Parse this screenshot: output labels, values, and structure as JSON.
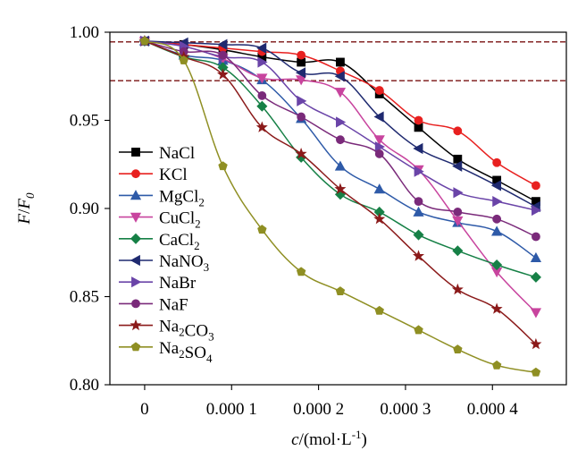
{
  "chart_data": {
    "type": "line",
    "xlabel": {
      "main": "c",
      "unit": "/(mol·L",
      "exp": "-1",
      "close": ")"
    },
    "ylabel": {
      "base": "F",
      "sep": "/",
      "base2": "F",
      "sub": "0"
    },
    "xlim": [
      -4e-05,
      0.000485
    ],
    "ylim": [
      0.8,
      1.0
    ],
    "xticks": [
      {
        "v": 0,
        "label": "0"
      },
      {
        "v": 0.0001,
        "label": "0.000 1"
      },
      {
        "v": 0.0002,
        "label": "0.000 2"
      },
      {
        "v": 0.0003,
        "label": "0.000 3"
      },
      {
        "v": 0.0004,
        "label": "0.000 4"
      }
    ],
    "yticks": [
      {
        "v": 0.8,
        "label": "0.80"
      },
      {
        "v": 0.85,
        "label": "0.85"
      },
      {
        "v": 0.9,
        "label": "0.90"
      },
      {
        "v": 0.95,
        "label": "0.95"
      },
      {
        "v": 1.0,
        "label": "1.00"
      }
    ],
    "reference_lines": [
      0.9945,
      0.9725
    ],
    "x": [
      0,
      4.5e-05,
      9e-05,
      0.000135,
      0.00018,
      0.000225,
      0.00027,
      0.000315,
      0.00036,
      0.000405,
      0.00045
    ],
    "series": [
      {
        "name": "NaCl",
        "parts": [
          [
            "NaCl",
            ""
          ]
        ],
        "color": "#000000",
        "marker": "square",
        "values": [
          0.995,
          0.993,
          0.99,
          0.986,
          0.983,
          0.983,
          0.965,
          0.946,
          0.928,
          0.916,
          0.904
        ]
      },
      {
        "name": "KCl",
        "parts": [
          [
            "KCl",
            ""
          ]
        ],
        "color": "#e8201f",
        "marker": "circle",
        "values": [
          0.995,
          0.993,
          0.991,
          0.989,
          0.987,
          0.978,
          0.967,
          0.95,
          0.944,
          0.926,
          0.913
        ]
      },
      {
        "name": "MgCl2",
        "parts": [
          [
            "MgCl",
            ""
          ],
          [
            "",
            "2"
          ]
        ],
        "color": "#2e5aa8",
        "marker": "triangle-up",
        "values": [
          0.995,
          0.987,
          0.984,
          0.973,
          0.951,
          0.924,
          0.911,
          0.898,
          0.892,
          0.887,
          0.872
        ]
      },
      {
        "name": "CuCl2",
        "parts": [
          [
            "CuCl",
            ""
          ],
          [
            "",
            "2"
          ]
        ],
        "color": "#c8449e",
        "marker": "triangle-down",
        "values": [
          0.995,
          0.992,
          0.985,
          0.974,
          0.973,
          0.966,
          0.939,
          0.922,
          0.893,
          0.864,
          0.841
        ]
      },
      {
        "name": "CaCl2",
        "parts": [
          [
            "CaCl",
            ""
          ],
          [
            "",
            "2"
          ]
        ],
        "color": "#168046",
        "marker": "diamond",
        "values": [
          0.995,
          0.986,
          0.98,
          0.958,
          0.929,
          0.908,
          0.898,
          0.885,
          0.876,
          0.868,
          0.861
        ]
      },
      {
        "name": "NaNO3",
        "parts": [
          [
            "NaNO",
            ""
          ],
          [
            "",
            "3"
          ]
        ],
        "color": "#1f2a70",
        "marker": "triangle-left",
        "values": [
          0.995,
          0.994,
          0.993,
          0.991,
          0.977,
          0.975,
          0.952,
          0.934,
          0.924,
          0.913,
          0.901
        ]
      },
      {
        "name": "NaBr",
        "parts": [
          [
            "NaBr",
            ""
          ]
        ],
        "color": "#6a44a8",
        "marker": "triangle-right",
        "values": [
          0.995,
          0.992,
          0.986,
          0.983,
          0.961,
          0.949,
          0.935,
          0.921,
          0.909,
          0.904,
          0.899
        ]
      },
      {
        "name": "NaF",
        "parts": [
          [
            "NaF",
            ""
          ]
        ],
        "color": "#7a2a7a",
        "marker": "circle",
        "values": [
          0.995,
          0.989,
          0.987,
          0.964,
          0.952,
          0.939,
          0.931,
          0.904,
          0.898,
          0.894,
          0.884
        ]
      },
      {
        "name": "Na2CO3",
        "parts": [
          [
            "Na",
            ""
          ],
          [
            "",
            "2"
          ],
          [
            "CO",
            ""
          ],
          [
            "",
            "3"
          ]
        ],
        "color": "#8b1a1a",
        "marker": "star",
        "values": [
          0.995,
          0.986,
          0.976,
          0.946,
          0.931,
          0.911,
          0.894,
          0.873,
          0.854,
          0.843,
          0.823
        ]
      },
      {
        "name": "Na2SO4",
        "parts": [
          [
            "Na",
            ""
          ],
          [
            "",
            "2"
          ],
          [
            "SO",
            ""
          ],
          [
            "",
            "4"
          ]
        ],
        "color": "#8f8f23",
        "marker": "pentagon",
        "values": [
          0.995,
          0.984,
          0.924,
          0.888,
          0.864,
          0.853,
          0.842,
          0.831,
          0.82,
          0.811,
          0.807
        ]
      }
    ]
  }
}
